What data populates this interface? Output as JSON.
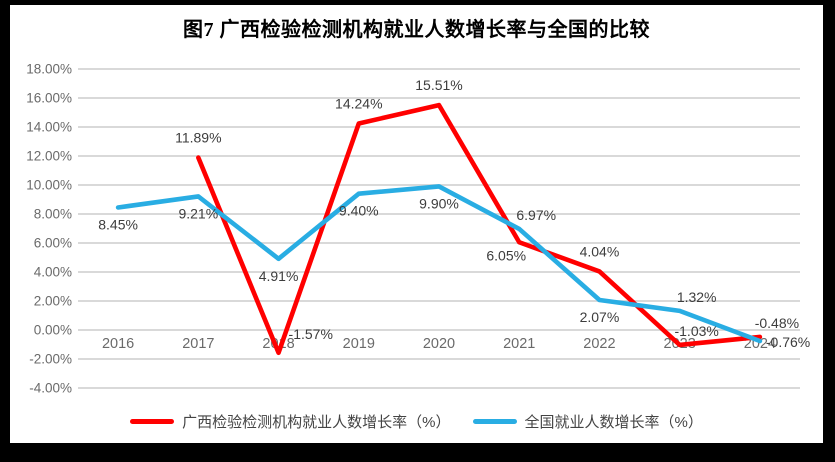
{
  "frame": {
    "background": "#000000",
    "chart_background": "#FFFFFF",
    "gridline_color": "#D9D9D9",
    "axis_label_color": "#6A6A6A",
    "data_label_color": "#3D3D3D"
  },
  "chart_data": {
    "type": "line",
    "title": "图7 广西检验检测机构就业人数增长率与全国的比较",
    "categories": [
      "2016",
      "2017",
      "2018",
      "2019",
      "2020",
      "2021",
      "2022",
      "2023",
      "2024"
    ],
    "y_axis": {
      "min": -4,
      "max": 18,
      "step": 2,
      "tick_values": [
        18,
        16,
        14,
        12,
        10,
        8,
        6,
        4,
        2,
        0,
        -2,
        -4
      ],
      "tick_labels": [
        "18.00%",
        "16.00%",
        "14.00%",
        "12.00%",
        "10.00%",
        "8.00%",
        "6.00%",
        "4.00%",
        "2.00%",
        "0.00%",
        "-2.00%",
        "-4.00%"
      ]
    },
    "grid": true,
    "legend_position": "bottom",
    "series": [
      {
        "name": "广西检验检测机构就业人数增长率（%）",
        "color": "#FF0000",
        "start_index": 1,
        "values": [
          11.89,
          -1.57,
          14.24,
          15.51,
          6.05,
          4.04,
          -1.03,
          -0.48
        ],
        "labels": [
          "11.89%",
          "-1.57%",
          "14.24%",
          "15.51%",
          "6.05%",
          "4.04%",
          "-1.03%",
          "-0.48%"
        ],
        "label_positions": [
          "above",
          "right-up",
          "above",
          "above",
          "below-left",
          "above",
          "above-right",
          "above-right"
        ]
      },
      {
        "name": "全国就业人数增长率（%）",
        "color": "#29ADE3",
        "start_index": 0,
        "values": [
          8.45,
          9.21,
          4.91,
          9.4,
          9.9,
          6.97,
          2.07,
          1.32,
          -0.76
        ],
        "labels": [
          "8.45%",
          "9.21%",
          "4.91%",
          "9.40%",
          "9.90%",
          "6.97%",
          "2.07%",
          "1.32%",
          "-0.76%"
        ],
        "label_positions": [
          "below",
          "below",
          "below",
          "below",
          "below",
          "above-right",
          "below",
          "above-right",
          "right"
        ]
      }
    ]
  }
}
